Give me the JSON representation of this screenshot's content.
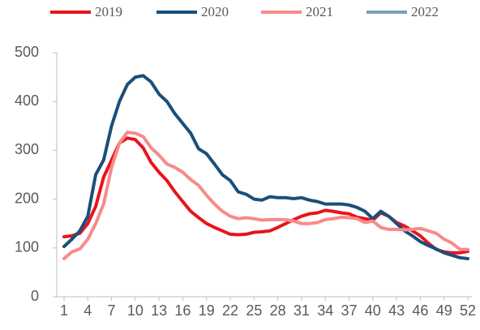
{
  "chart_data": {
    "type": "line",
    "x": [
      1,
      2,
      3,
      4,
      5,
      6,
      7,
      8,
      9,
      10,
      11,
      12,
      13,
      14,
      15,
      16,
      17,
      18,
      19,
      20,
      21,
      22,
      23,
      24,
      25,
      26,
      27,
      28,
      29,
      30,
      31,
      32,
      33,
      34,
      35,
      36,
      37,
      38,
      39,
      40,
      41,
      42,
      43,
      44,
      45,
      46,
      47,
      48,
      49,
      50,
      51,
      52
    ],
    "xlim": [
      0,
      52
    ],
    "xticks": [
      1,
      4,
      7,
      10,
      13,
      16,
      19,
      22,
      25,
      28,
      31,
      34,
      37,
      40,
      43,
      46,
      49,
      52
    ],
    "ylim": [
      0,
      500
    ],
    "yticks": [
      0,
      100,
      200,
      300,
      400,
      500
    ],
    "grid": false,
    "legend": "top",
    "series": [
      {
        "name": "2019",
        "color": "#e8141c",
        "values": [
          123,
          125,
          130,
          150,
          185,
          245,
          280,
          315,
          325,
          322,
          305,
          275,
          255,
          238,
          215,
          195,
          175,
          162,
          150,
          142,
          135,
          128,
          127,
          128,
          132,
          133,
          135,
          142,
          150,
          158,
          165,
          170,
          172,
          177,
          175,
          172,
          170,
          163,
          160,
          157,
          172,
          165,
          152,
          145,
          135,
          125,
          110,
          97,
          92,
          90,
          90,
          93
        ]
      },
      {
        "name": "2020",
        "color": "#1a4f7a",
        "values": [
          103,
          118,
          135,
          165,
          250,
          280,
          350,
          400,
          435,
          450,
          453,
          440,
          415,
          400,
          375,
          355,
          335,
          303,
          293,
          272,
          250,
          238,
          215,
          210,
          200,
          198,
          205,
          203,
          203,
          201,
          203,
          198,
          195,
          190,
          190,
          190,
          188,
          183,
          175,
          160,
          175,
          165,
          150,
          135,
          125,
          113,
          105,
          98,
          90,
          85,
          80,
          78
        ]
      },
      {
        "name": "2021",
        "color": "#f88a8a",
        "values": [
          78,
          92,
          98,
          118,
          150,
          190,
          265,
          315,
          337,
          335,
          328,
          305,
          290,
          272,
          265,
          255,
          240,
          228,
          208,
          190,
          175,
          165,
          160,
          162,
          160,
          157,
          158,
          158,
          158,
          155,
          150,
          150,
          152,
          158,
          160,
          163,
          162,
          160,
          152,
          155,
          142,
          138,
          138,
          137,
          138,
          140,
          135,
          130,
          118,
          110,
          97,
          97
        ]
      },
      {
        "name": "2022",
        "color": "#7b9fb5",
        "values": [
          null,
          null,
          null,
          null,
          null,
          null,
          null,
          null,
          null,
          null,
          null,
          null,
          null,
          null,
          null,
          null,
          null,
          null,
          null,
          null,
          null,
          null,
          null,
          null,
          null,
          null,
          null,
          null,
          null,
          null,
          null,
          null,
          null,
          null,
          null,
          null,
          null,
          null,
          null,
          null,
          null,
          null,
          null,
          null,
          null,
          null,
          null,
          null,
          null,
          null,
          null,
          null
        ]
      }
    ]
  }
}
